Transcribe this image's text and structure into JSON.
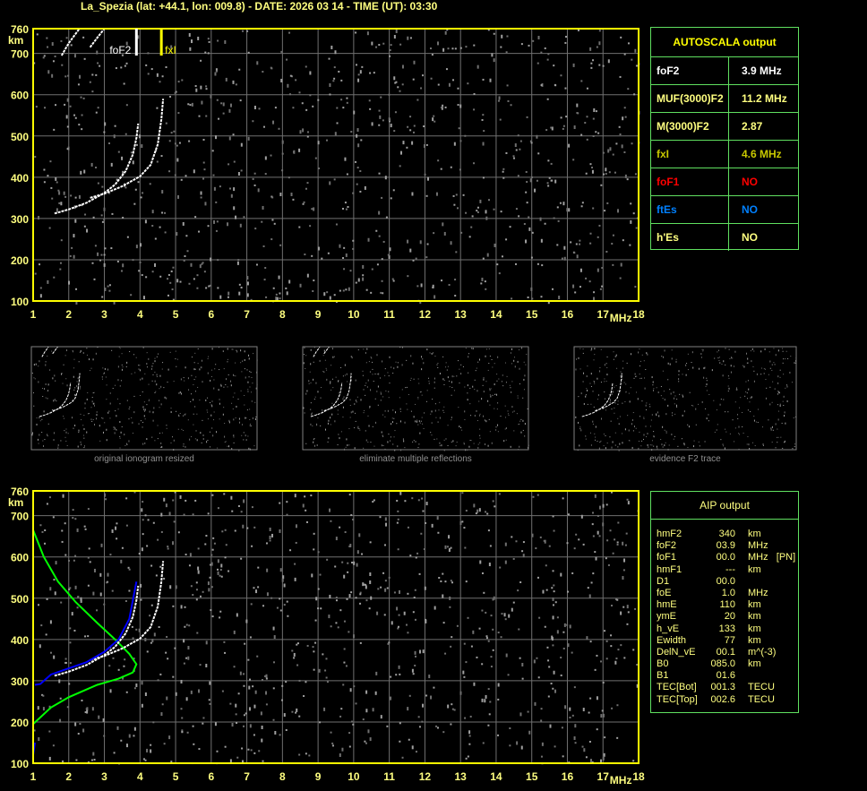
{
  "header": {
    "title": "La_Spezia (lat: +44.1, lon: 009.8) - DATE: 2026 03 14 - TIME (UT): 03:30"
  },
  "autoscala": {
    "title": "AUTOSCALA output",
    "rows": [
      {
        "key": "foF2",
        "value": "3.9 MHz",
        "color": "#ffffff"
      },
      {
        "key": "MUF(3000)F2",
        "value": "11.2 MHz",
        "color": "#ffff80"
      },
      {
        "key": "M(3000)F2",
        "value": "2.87",
        "color": "#ffff80"
      },
      {
        "key": "fxI",
        "value": "4.6 MHz",
        "color": "#c8c800"
      },
      {
        "key": "foF1",
        "value": "NO",
        "color": "#ff0000"
      },
      {
        "key": "ftEs",
        "value": "NO",
        "color": "#0080ff"
      },
      {
        "key": "h'Es",
        "value": "NO",
        "color": "#ffff80"
      }
    ]
  },
  "aip": {
    "title": "AIP output",
    "rows": [
      [
        "hmF2",
        "340",
        "km"
      ],
      [
        "foF2",
        "03.9",
        "MHz"
      ],
      [
        "foF1",
        "00.0",
        "MHz   [PN]"
      ],
      [
        "hmF1",
        "---",
        "km"
      ],
      [
        "D1",
        "00.0",
        ""
      ],
      [
        "foE",
        "1.0",
        "MHz"
      ],
      [
        "hmE",
        "110",
        "km"
      ],
      [
        "ymE",
        "20",
        "km"
      ],
      [
        "h_vE",
        "133",
        "km"
      ],
      [
        "Ewidth",
        "77",
        "km"
      ],
      [
        "DelN_vE",
        "00.1",
        "m^(-3)"
      ],
      [
        "B0",
        "085.0",
        "km"
      ],
      [
        "B1",
        "01.6",
        ""
      ],
      [
        "TEC[Bot]",
        "001.3",
        "TECU"
      ],
      [
        "TEC[Top]",
        "002.6",
        "TECU"
      ]
    ]
  },
  "thumbnails": {
    "captions": [
      "original ionogram resized",
      "eliminate multiple reflections",
      "evidence F2 trace"
    ]
  },
  "chart_data": [
    {
      "type": "scatter",
      "title": "",
      "xlabel": "MHz",
      "ylabel": "km",
      "xlim": [
        1,
        18
      ],
      "ylim": [
        100,
        760
      ],
      "xticks": [
        1,
        2,
        3,
        4,
        5,
        6,
        7,
        8,
        9,
        10,
        11,
        12,
        13,
        14,
        15,
        16,
        17,
        18
      ],
      "yticks": [
        760,
        700,
        600,
        500,
        400,
        300,
        200,
        100
      ],
      "grid": true,
      "markers": [
        {
          "label": "foF2",
          "x": 3.9,
          "color": "#ffffff"
        },
        {
          "label": "fxI",
          "x": 4.6,
          "color": "#ffff00"
        }
      ],
      "series": [
        {
          "trace": "o",
          "color": "#ffffff",
          "x": [
            1.6,
            2.0,
            2.5,
            3.0,
            3.3,
            3.6,
            3.8,
            3.9,
            3.95
          ],
          "y": [
            312,
            322,
            338,
            362,
            382,
            415,
            455,
            495,
            530
          ]
        },
        {
          "trace": "x",
          "color": "#ffffff",
          "x": [
            2.6,
            3.0,
            3.5,
            4.0,
            4.3,
            4.5,
            4.6,
            4.65
          ],
          "y": [
            350,
            360,
            378,
            402,
            430,
            480,
            540,
            590
          ]
        },
        {
          "trace": "multiple",
          "color": "#ffffff",
          "x": [
            1.8,
            2.0,
            2.3
          ],
          "y": [
            695,
            725,
            760
          ]
        },
        {
          "trace": "multiple",
          "color": "#ffffff",
          "x": [
            2.6,
            2.8,
            3.0
          ],
          "y": [
            715,
            738,
            760
          ]
        }
      ]
    },
    {
      "type": "line",
      "title": "",
      "xlabel": "MHz",
      "ylabel": "km",
      "xlim": [
        1,
        18
      ],
      "ylim": [
        100,
        760
      ],
      "xticks": [
        1,
        2,
        3,
        4,
        5,
        6,
        7,
        8,
        9,
        10,
        11,
        12,
        13,
        14,
        15,
        16,
        17,
        18
      ],
      "yticks": [
        760,
        700,
        600,
        500,
        400,
        300,
        200,
        100
      ],
      "grid": true,
      "series": [
        {
          "trace": "profile",
          "color": "#00ff00",
          "x": [
            1.0,
            1.3,
            1.7,
            2.2,
            2.8,
            3.3,
            3.7,
            3.9,
            3.8,
            3.4,
            2.8,
            2.0,
            1.5,
            1.0
          ],
          "y": [
            665,
            600,
            540,
            490,
            440,
            400,
            365,
            340,
            320,
            305,
            290,
            260,
            235,
            195
          ]
        },
        {
          "trace": "o",
          "color": "#ffffff",
          "x": [
            1.6,
            2.0,
            2.5,
            3.0,
            3.3,
            3.6,
            3.8,
            3.9,
            3.95
          ],
          "y": [
            312,
            322,
            338,
            362,
            382,
            415,
            455,
            495,
            530
          ]
        },
        {
          "trace": "x",
          "color": "#ffffff",
          "x": [
            2.6,
            3.0,
            3.5,
            4.0,
            4.3,
            4.5,
            4.6,
            4.65
          ],
          "y": [
            350,
            360,
            378,
            402,
            430,
            480,
            540,
            590
          ]
        },
        {
          "trace": "fitted",
          "color": "#0000ff",
          "x": [
            1.05,
            1.2,
            1.5,
            2.0,
            2.5,
            3.0,
            3.4,
            3.7,
            3.9
          ],
          "y": [
            290,
            292,
            315,
            330,
            345,
            370,
            400,
            450,
            540
          ]
        },
        {
          "trace": "fitted-E",
          "color": "#0000ff",
          "x": [
            1.0,
            1.05
          ],
          "y": [
            120,
            150
          ]
        }
      ]
    }
  ]
}
